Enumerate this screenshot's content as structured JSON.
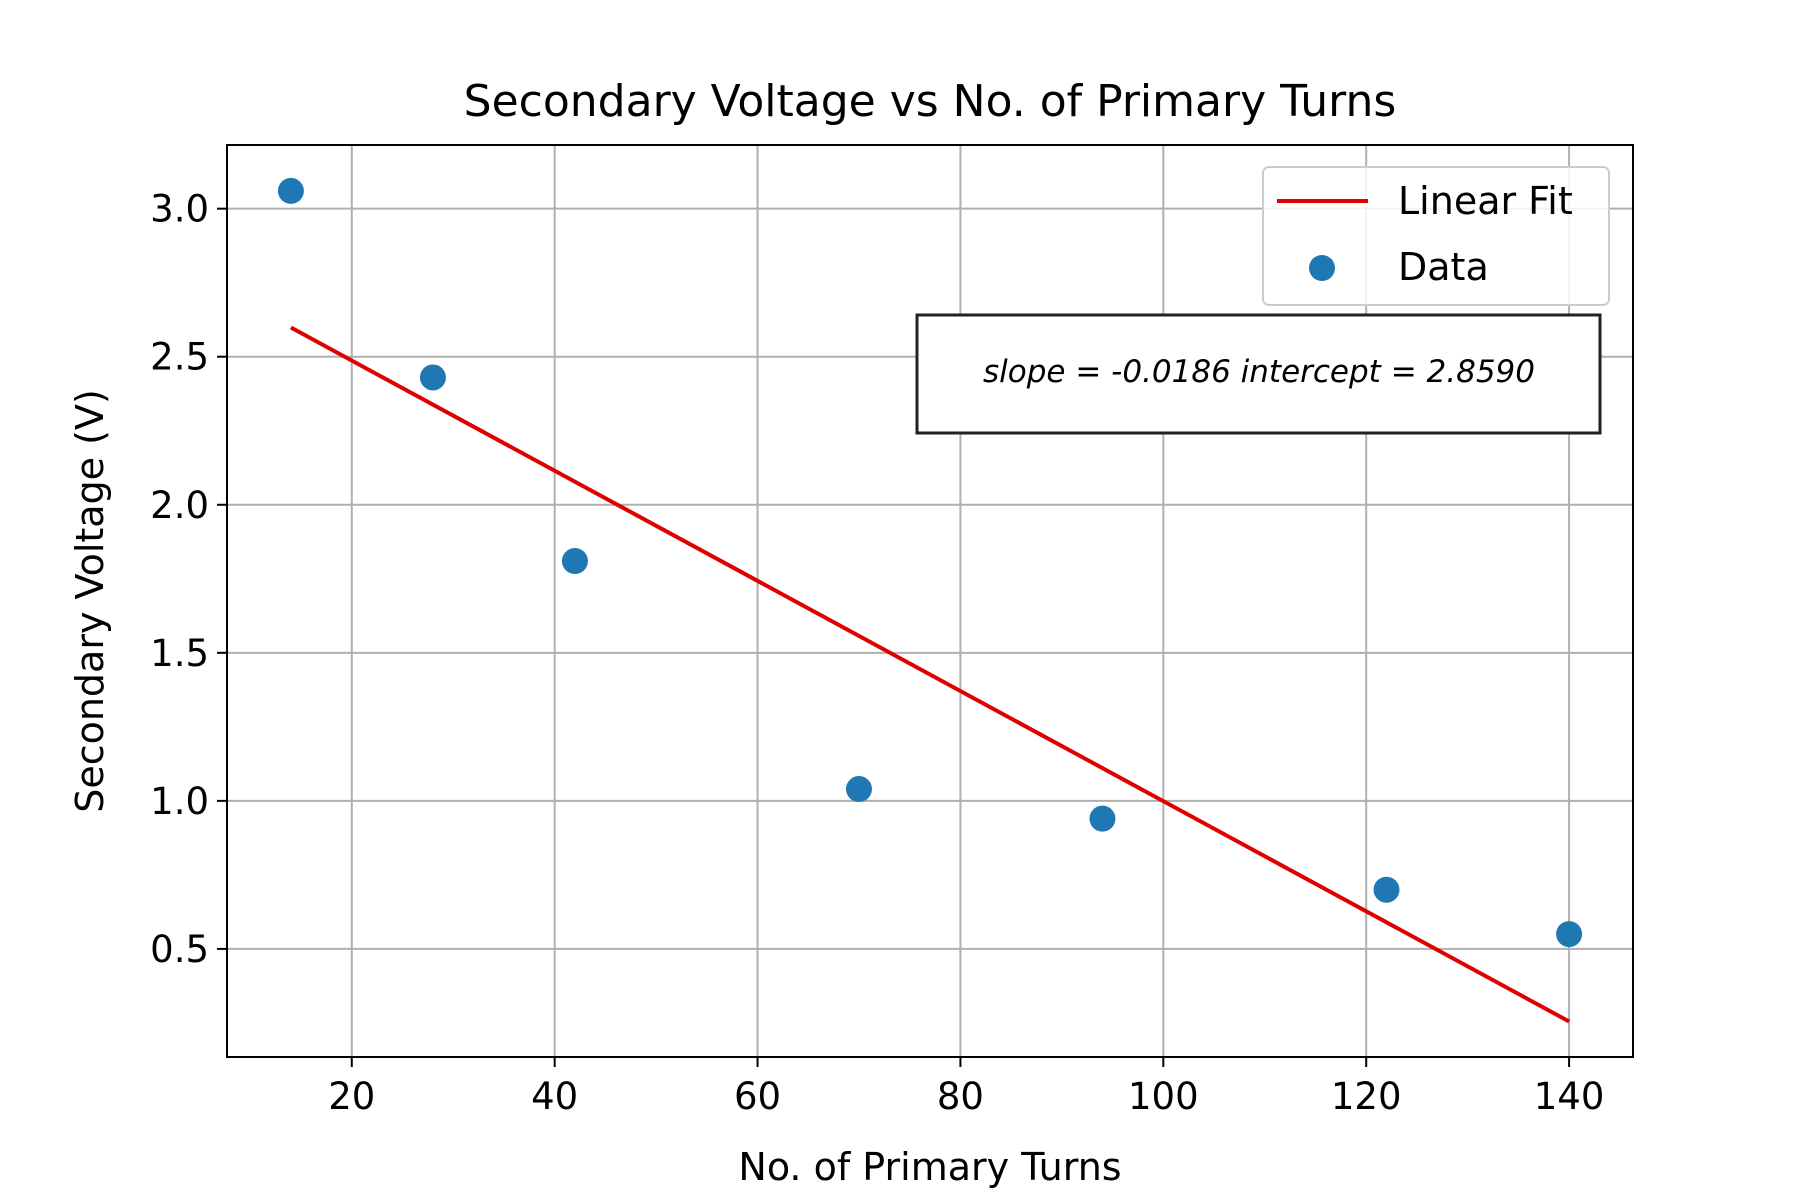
{
  "chart_data": {
    "type": "scatter",
    "title": "Secondary Voltage vs No. of Primary Turns",
    "xlabel": "No. of Primary Turns",
    "ylabel": "Secondary Voltage (V)",
    "xlim": [
      7.7,
      146.3
    ],
    "ylim": [
      0.135,
      3.215
    ],
    "xticks": [
      20,
      40,
      60,
      80,
      100,
      120,
      140
    ],
    "yticks": [
      0.5,
      1.0,
      1.5,
      2.0,
      2.5,
      3.0
    ],
    "xtick_labels": [
      "20",
      "40",
      "60",
      "80",
      "100",
      "120",
      "140"
    ],
    "ytick_labels": [
      "0.5",
      "1.0",
      "1.5",
      "2.0",
      "2.5",
      "3.0"
    ],
    "grid": true,
    "legend": {
      "placement": "top-right",
      "entries": [
        "Linear Fit",
        "Data"
      ]
    },
    "series": [
      {
        "name": "Data",
        "kind": "scatter",
        "color": "#1f77b4",
        "x": [
          14,
          28,
          42,
          70,
          94,
          122,
          140
        ],
        "y": [
          3.06,
          2.43,
          1.81,
          1.04,
          0.94,
          0.7,
          0.55
        ]
      },
      {
        "name": "Linear Fit",
        "kind": "line",
        "color": "#e00000",
        "slope": -0.0186,
        "intercept": 2.859,
        "x": [
          14,
          140
        ]
      }
    ],
    "annotation": "slope = -0.0186 intercept = 2.8590"
  }
}
